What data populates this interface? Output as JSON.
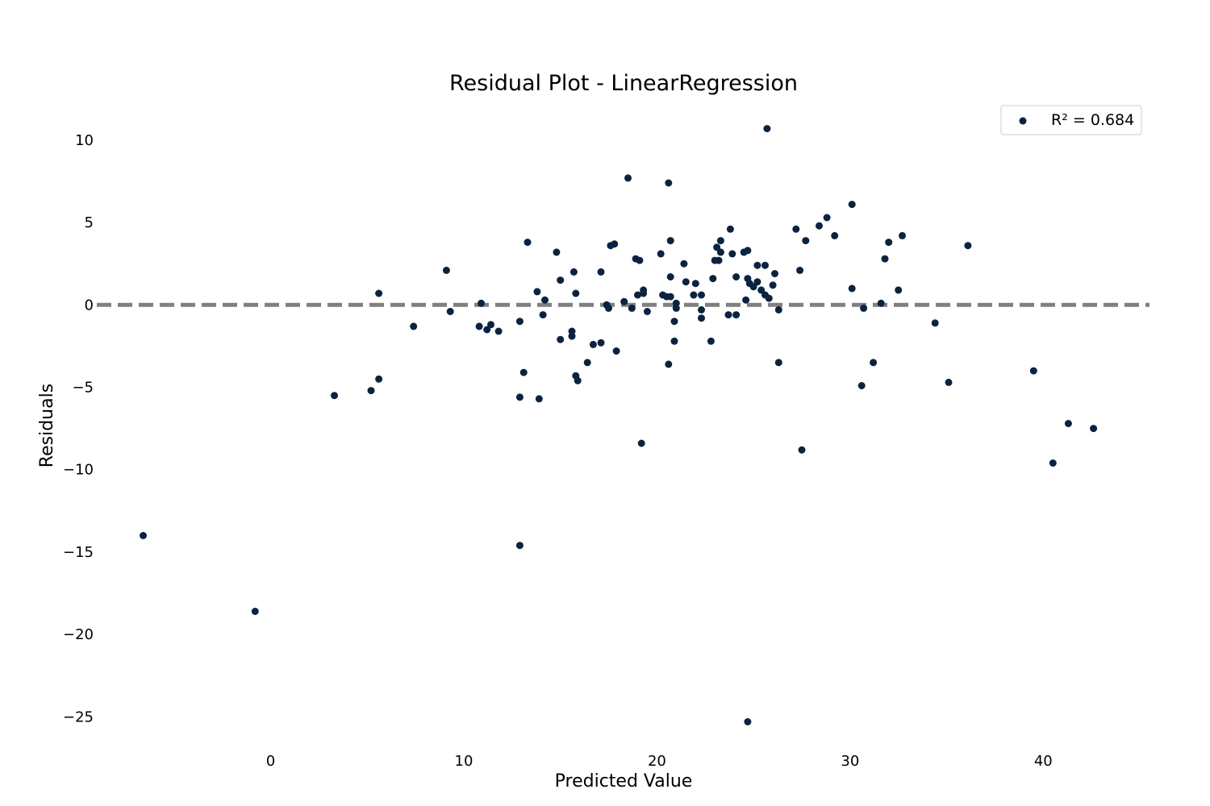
{
  "chart_data": {
    "type": "scatter",
    "title": "Residual Plot - LinearRegression",
    "xlabel": "Predicted Value",
    "ylabel": "Residuals",
    "xlim": [
      -9,
      45.5
    ],
    "ylim": [
      -26.5,
      12
    ],
    "xticks": [
      0,
      10,
      20,
      30,
      40
    ],
    "yticks": [
      10,
      5,
      0,
      -5,
      -10,
      -15,
      -20,
      -25
    ],
    "xtick_labels": [
      "0",
      "10",
      "20",
      "30",
      "40"
    ],
    "ytick_labels": [
      "10",
      "5",
      "0",
      "−5",
      "−10",
      "−15",
      "−20",
      "−25"
    ],
    "grid": false,
    "legend": {
      "position": "top-right",
      "entries": [
        "R² = 0.684"
      ]
    },
    "reference_line": {
      "y": 0,
      "style": "dashed",
      "color": "#808080"
    },
    "series": [
      {
        "name": "R² = 0.684",
        "color": "#0b2340",
        "points": [
          [
            -6.6,
            -14.0
          ],
          [
            -0.8,
            -18.6
          ],
          [
            3.3,
            -5.5
          ],
          [
            5.2,
            -5.2
          ],
          [
            5.6,
            -4.5
          ],
          [
            5.6,
            0.7
          ],
          [
            7.4,
            -1.3
          ],
          [
            9.1,
            2.1
          ],
          [
            9.3,
            -0.4
          ],
          [
            10.8,
            -1.3
          ],
          [
            10.9,
            0.1
          ],
          [
            11.2,
            -1.5
          ],
          [
            11.4,
            -1.2
          ],
          [
            11.8,
            -1.6
          ],
          [
            12.9,
            -1.0
          ],
          [
            12.9,
            -5.6
          ],
          [
            12.9,
            -14.6
          ],
          [
            13.1,
            -4.1
          ],
          [
            13.3,
            3.8
          ],
          [
            13.8,
            0.8
          ],
          [
            13.9,
            -5.7
          ],
          [
            14.1,
            -0.6
          ],
          [
            14.2,
            0.3
          ],
          [
            14.8,
            3.2
          ],
          [
            15.0,
            1.5
          ],
          [
            15.0,
            -2.1
          ],
          [
            15.6,
            -1.6
          ],
          [
            15.6,
            -1.9
          ],
          [
            15.7,
            2.0
          ],
          [
            15.8,
            0.7
          ],
          [
            15.8,
            -4.3
          ],
          [
            15.9,
            -4.6
          ],
          [
            16.4,
            -3.5
          ],
          [
            16.7,
            -2.4
          ],
          [
            17.1,
            2.0
          ],
          [
            17.1,
            -2.3
          ],
          [
            17.4,
            0.0
          ],
          [
            17.5,
            -0.2
          ],
          [
            17.6,
            3.6
          ],
          [
            17.8,
            3.7
          ],
          [
            17.9,
            -2.8
          ],
          [
            18.3,
            0.2
          ],
          [
            18.5,
            7.7
          ],
          [
            18.7,
            -0.2
          ],
          [
            18.9,
            2.8
          ],
          [
            19.0,
            0.6
          ],
          [
            19.1,
            2.7
          ],
          [
            19.2,
            -8.4
          ],
          [
            19.3,
            0.9
          ],
          [
            19.3,
            0.7
          ],
          [
            19.5,
            -0.4
          ],
          [
            20.2,
            3.1
          ],
          [
            20.3,
            0.6
          ],
          [
            20.5,
            0.5
          ],
          [
            20.6,
            7.4
          ],
          [
            20.6,
            -3.6
          ],
          [
            20.7,
            1.7
          ],
          [
            20.7,
            0.5
          ],
          [
            20.7,
            3.9
          ],
          [
            20.9,
            -2.2
          ],
          [
            20.9,
            -1.0
          ],
          [
            21.0,
            -0.2
          ],
          [
            21.0,
            0.1
          ],
          [
            21.4,
            2.5
          ],
          [
            21.5,
            1.4
          ],
          [
            21.9,
            0.6
          ],
          [
            22.0,
            1.3
          ],
          [
            22.3,
            -0.3
          ],
          [
            22.3,
            0.6
          ],
          [
            22.3,
            -0.8
          ],
          [
            22.8,
            -2.2
          ],
          [
            22.9,
            1.6
          ],
          [
            23.0,
            2.7
          ],
          [
            23.1,
            3.5
          ],
          [
            23.2,
            2.7
          ],
          [
            23.3,
            3.9
          ],
          [
            23.3,
            3.2
          ],
          [
            23.7,
            -0.6
          ],
          [
            23.8,
            4.6
          ],
          [
            23.9,
            3.1
          ],
          [
            24.1,
            -0.6
          ],
          [
            24.1,
            1.7
          ],
          [
            24.5,
            3.2
          ],
          [
            24.6,
            0.3
          ],
          [
            24.7,
            1.6
          ],
          [
            24.7,
            3.3
          ],
          [
            24.8,
            1.3
          ],
          [
            25.0,
            1.1
          ],
          [
            25.2,
            1.4
          ],
          [
            25.2,
            2.4
          ],
          [
            25.4,
            0.9
          ],
          [
            25.6,
            2.4
          ],
          [
            25.6,
            0.6
          ],
          [
            25.7,
            10.7
          ],
          [
            25.8,
            0.4
          ],
          [
            26.0,
            1.2
          ],
          [
            26.1,
            1.9
          ],
          [
            26.3,
            -0.3
          ],
          [
            26.3,
            -3.5
          ],
          [
            27.2,
            4.6
          ],
          [
            27.4,
            2.1
          ],
          [
            27.5,
            -8.8
          ],
          [
            27.7,
            3.9
          ],
          [
            28.4,
            4.8
          ],
          [
            28.8,
            5.3
          ],
          [
            29.2,
            4.2
          ],
          [
            30.1,
            6.1
          ],
          [
            30.1,
            1.0
          ],
          [
            30.6,
            -4.9
          ],
          [
            30.7,
            -0.2
          ],
          [
            31.2,
            -3.5
          ],
          [
            31.6,
            0.1
          ],
          [
            31.8,
            2.8
          ],
          [
            32.0,
            3.8
          ],
          [
            32.5,
            0.9
          ],
          [
            32.7,
            4.2
          ],
          [
            34.4,
            -1.1
          ],
          [
            35.1,
            -4.7
          ],
          [
            36.1,
            3.6
          ],
          [
            39.5,
            -4.0
          ],
          [
            40.5,
            -9.6
          ],
          [
            41.3,
            -7.2
          ],
          [
            42.6,
            -7.5
          ],
          [
            24.7,
            -25.3
          ]
        ]
      }
    ]
  }
}
